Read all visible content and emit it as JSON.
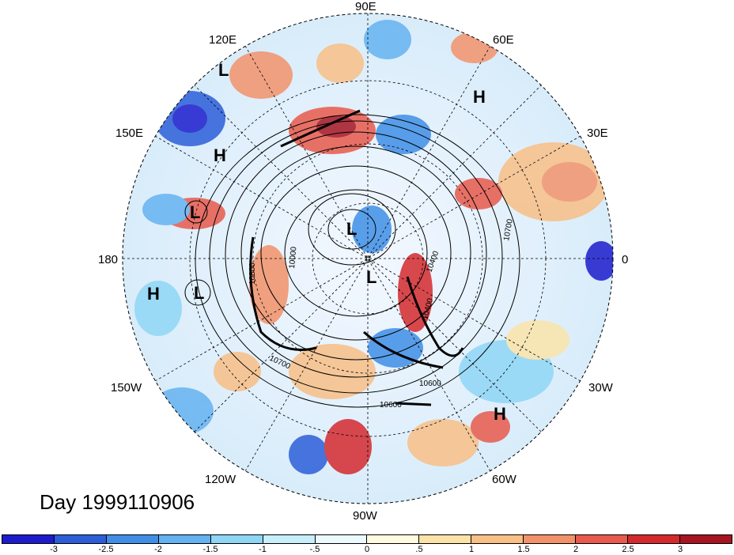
{
  "map": {
    "day_label": "Day 1999110906",
    "longitude_labels": [
      {
        "id": "lon-90e",
        "text": "90E"
      },
      {
        "id": "lon-60e",
        "text": "60E"
      },
      {
        "id": "lon-120e",
        "text": "120E"
      },
      {
        "id": "lon-30e",
        "text": "30E"
      },
      {
        "id": "lon-150e",
        "text": "150E"
      },
      {
        "id": "lon-0",
        "text": "0"
      },
      {
        "id": "lon-180",
        "text": "180"
      },
      {
        "id": "lon-150w",
        "text": "150W"
      },
      {
        "id": "lon-30w",
        "text": "30W"
      },
      {
        "id": "lon-120w",
        "text": "120W"
      },
      {
        "id": "lon-60w",
        "text": "60W"
      },
      {
        "id": "lon-90w",
        "text": "90W"
      }
    ],
    "pressure_centers": [
      {
        "id": "l1",
        "text": "L"
      },
      {
        "id": "h1",
        "text": "H"
      },
      {
        "id": "h2",
        "text": "H"
      },
      {
        "id": "l2",
        "text": "L"
      },
      {
        "id": "l3",
        "text": "L"
      },
      {
        "id": "l4",
        "text": "L"
      },
      {
        "id": "h3",
        "text": "H"
      },
      {
        "id": "l5",
        "text": "L"
      },
      {
        "id": "h4",
        "text": "H"
      }
    ],
    "contour_labels": [
      "10700",
      "10800",
      "10600",
      "10000",
      "10400",
      "10600",
      "10700",
      "10400"
    ]
  },
  "colorbar": {
    "colors": [
      "#1c1ccc",
      "#2c5ed8",
      "#3f8fe6",
      "#64b2f0",
      "#8fd6f5",
      "#c7eefb",
      "#eafaff",
      "#fffbe0",
      "#fbe3a8",
      "#f8bf86",
      "#f2926a",
      "#e85a4c",
      "#d42a2e",
      "#a51622"
    ],
    "labels": [
      "-3",
      "-2.5",
      "-2",
      "-1.5",
      "-1",
      "-.5",
      "0",
      ".5",
      "1",
      "1.5",
      "2",
      "2.5",
      "3"
    ]
  }
}
